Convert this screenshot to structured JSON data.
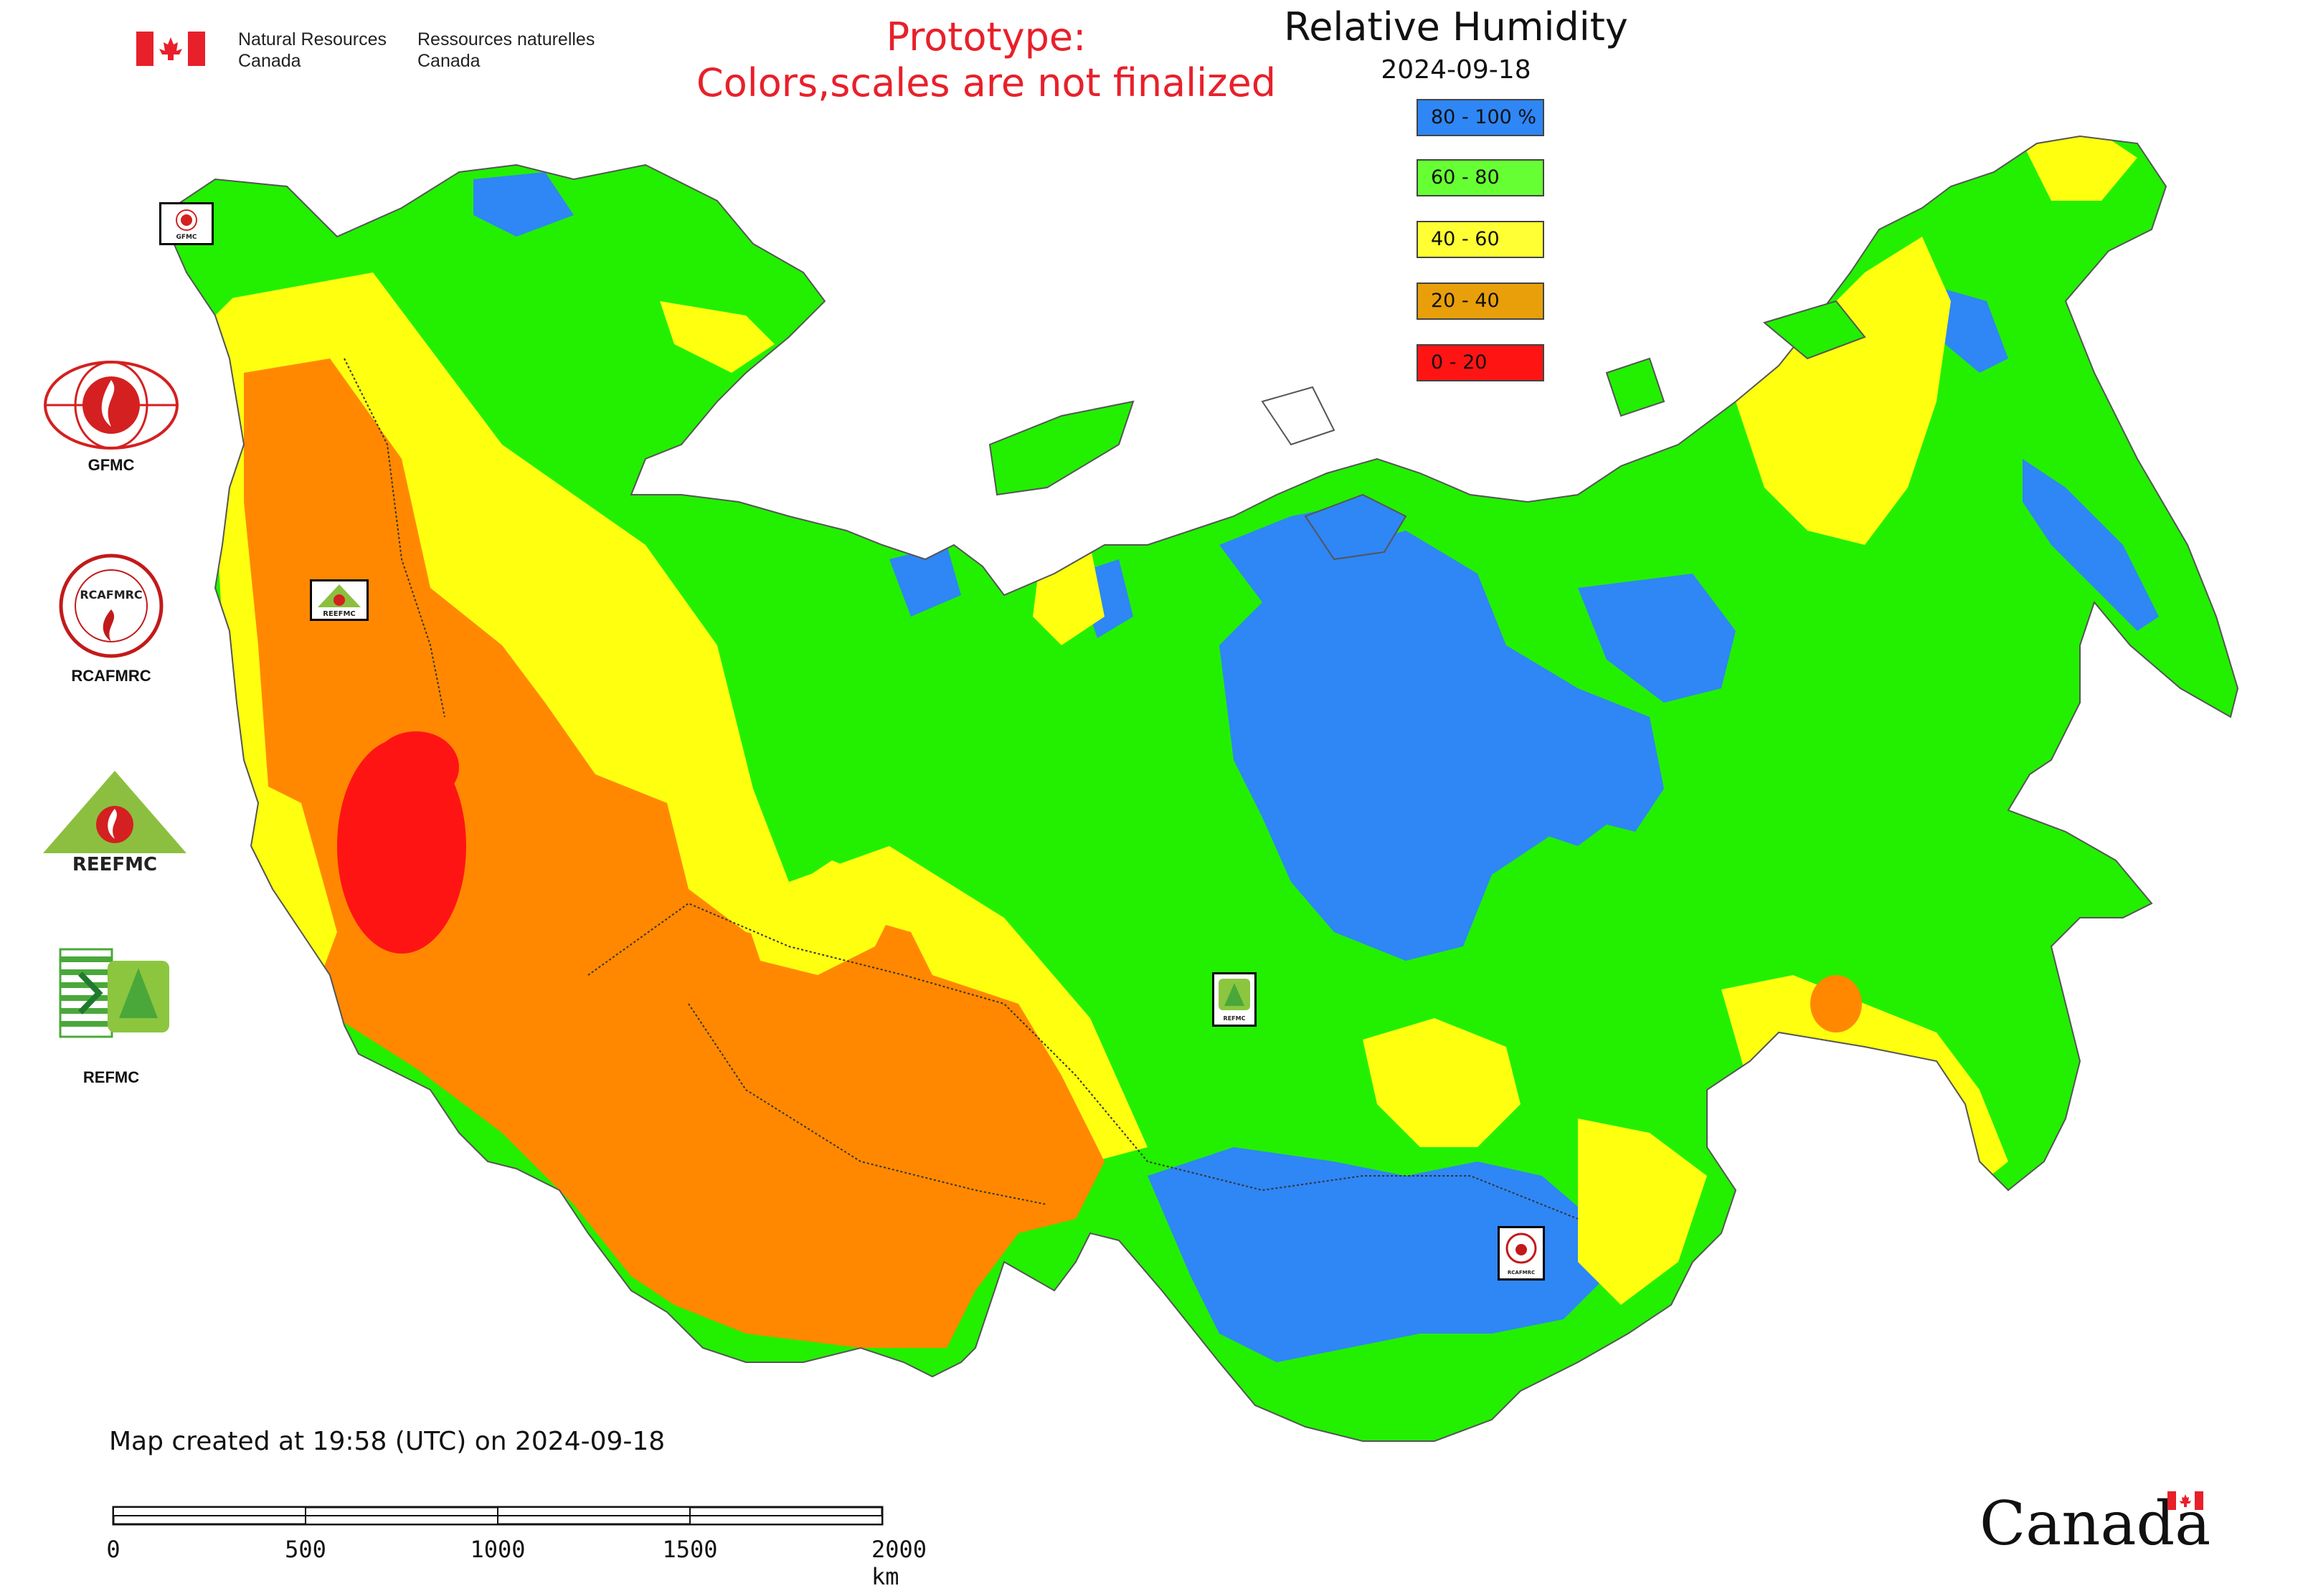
{
  "header": {
    "org_en_line1": "Natural Resources",
    "org_en_line2": "Canada",
    "org_fr_line1": "Ressources naturelles",
    "org_fr_line2": "Canada",
    "prototype_line1": "Prototype:",
    "prototype_line2": "Colors,scales are not finalized",
    "title": "Relative Humidity",
    "date": "2024-09-18"
  },
  "legend": [
    {
      "label": "80 - 100 %",
      "color": "#2f86f5"
    },
    {
      "label": "60 - 80",
      "color": "#66ff33"
    },
    {
      "label": "40 - 60",
      "color": "#ffff33"
    },
    {
      "label": "20 - 40",
      "color": "#e89f0a"
    },
    {
      "label": "0 - 20",
      "color": "#ff1414"
    }
  ],
  "colors": {
    "blue": "#2f86f5",
    "green": "#22f000",
    "yellow": "#ffff10",
    "orange": "#ff8800",
    "red": "#ff1414",
    "border": "#555555"
  },
  "logos": {
    "gfmc": "GFMC",
    "rcafmrc": "RCAFMRC",
    "reefmc_word": "REEFMC",
    "refmc": "REFMC",
    "map_badge_gfmc": "GFMC",
    "map_badge_reefmc": "REEFMC",
    "map_badge_refmc": "REFMC",
    "map_badge_rcafmrc": "RCAFMRC"
  },
  "footer": {
    "created": "Map created at 19:58 (UTC) on 2024-09-18",
    "scale_labels": [
      "0",
      "500",
      "1000",
      "1500",
      "2000 km"
    ],
    "wordmark": "Canada"
  }
}
